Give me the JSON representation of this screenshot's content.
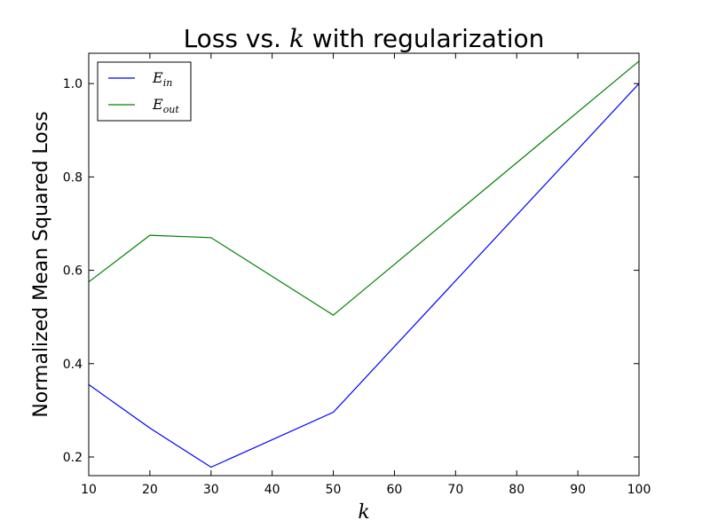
{
  "chart_data": {
    "type": "line",
    "title_prefix": "Loss vs. ",
    "title_math": "k",
    "title_suffix": " with regularization",
    "xlabel": "k",
    "ylabel": "Normalized Mean Squared Loss",
    "x": [
      10,
      20,
      30,
      50,
      100
    ],
    "xlim": [
      10,
      100
    ],
    "ylim": [
      0.16,
      1.065
    ],
    "xticks": [
      "10",
      "20",
      "30",
      "40",
      "50",
      "60",
      "70",
      "80",
      "90",
      "100"
    ],
    "yticks": [
      "0.2",
      "0.4",
      "0.6",
      "0.8",
      "1.0"
    ],
    "legend_position": "top-left",
    "grid": false,
    "series": [
      {
        "name_base": "E",
        "name_sub": "in",
        "color": "#0000ff",
        "values": [
          0.355,
          0.262,
          0.178,
          0.296,
          1.0
        ]
      },
      {
        "name_base": "E",
        "name_sub": "out",
        "color": "#008000",
        "values": [
          0.575,
          0.675,
          0.67,
          0.504,
          1.048
        ]
      }
    ]
  }
}
